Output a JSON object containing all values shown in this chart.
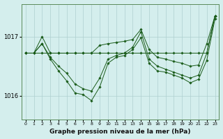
{
  "xlabel": "Graphe pression niveau de la mer (hPa)",
  "ylim": [
    1015.6,
    1017.55
  ],
  "xlim": [
    -0.5,
    23.5
  ],
  "yticks": [
    1016,
    1017
  ],
  "xticks": [
    0,
    1,
    2,
    3,
    4,
    5,
    6,
    7,
    8,
    9,
    10,
    11,
    12,
    13,
    14,
    15,
    16,
    17,
    18,
    19,
    20,
    21,
    22,
    23
  ],
  "bg_color": "#d4eeed",
  "grid_color": "#aecfcf",
  "line_color": "#1a5c1a",
  "series": [
    [
      1016.72,
      1016.72,
      1017.0,
      1016.72,
      1016.72,
      1016.72,
      1016.72,
      1016.72,
      1016.72,
      1016.85,
      1016.88,
      1016.9,
      1016.92,
      1016.95,
      1017.12,
      1016.78,
      1016.65,
      1016.62,
      1016.58,
      1016.55,
      1016.5,
      1016.52,
      1016.88,
      1017.35
    ],
    [
      1016.72,
      1016.72,
      1016.72,
      1016.72,
      1016.72,
      1016.72,
      1016.72,
      1016.72,
      1016.72,
      1016.72,
      1016.72,
      1016.72,
      1016.72,
      1016.72,
      1016.72,
      1016.72,
      1016.72,
      1016.72,
      1016.72,
      1016.72,
      1016.72,
      1016.72,
      1016.72,
      1017.35
    ],
    [
      1016.72,
      1016.72,
      1016.88,
      1016.65,
      1016.5,
      1016.38,
      1016.2,
      1016.12,
      1016.08,
      1016.3,
      1016.62,
      1016.68,
      1016.72,
      1016.82,
      1017.08,
      1016.62,
      1016.5,
      1016.45,
      1016.4,
      1016.35,
      1016.3,
      1016.35,
      1016.72,
      1017.35
    ],
    [
      1016.72,
      1016.72,
      1016.88,
      1016.62,
      1016.42,
      1016.25,
      1016.05,
      1016.02,
      1015.92,
      1016.15,
      1016.55,
      1016.65,
      1016.68,
      1016.78,
      1016.98,
      1016.55,
      1016.42,
      1016.4,
      1016.35,
      1016.3,
      1016.22,
      1016.28,
      1016.6,
      1017.3
    ]
  ]
}
